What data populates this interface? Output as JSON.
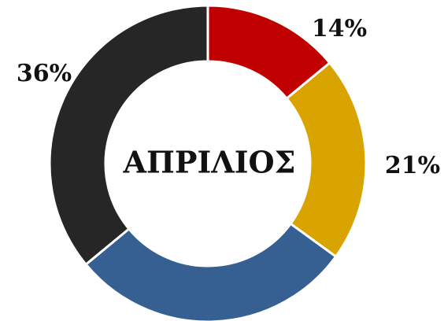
{
  "chart_data": {
    "type": "donut",
    "title": "ΑΠΡΙΛΙΟΣ",
    "values": [
      14,
      21,
      29,
      36
    ],
    "value_labels": [
      "14%",
      "21%",
      null,
      "36%"
    ],
    "colors": [
      "#c00000",
      "#d9a400",
      "#376092",
      "#262626"
    ]
  }
}
